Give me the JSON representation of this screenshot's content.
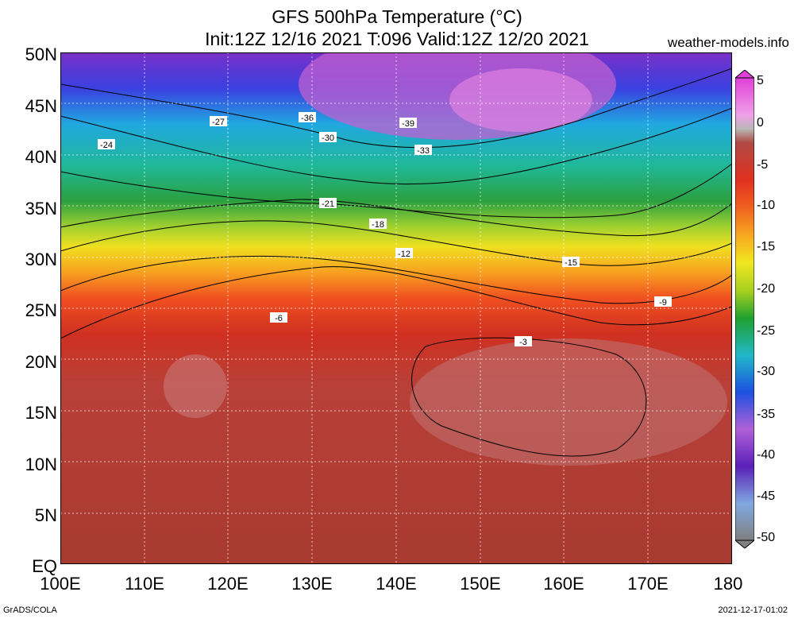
{
  "header": {
    "title": "GFS 500hPa Temperature (°C)",
    "subtitle": "Init:12Z 12/16 2021 T:096 Valid:12Z 12/20 2021",
    "site": "weather-models.info"
  },
  "axes": {
    "lat_labels": [
      "50N",
      "45N",
      "40N",
      "35N",
      "30N",
      "25N",
      "20N",
      "15N",
      "10N",
      "5N",
      "EQ"
    ],
    "lon_labels": [
      "100E",
      "110E",
      "120E",
      "130E",
      "140E",
      "150E",
      "160E",
      "170E",
      "180"
    ]
  },
  "colorbar": {
    "labels": [
      "5",
      "0",
      "-5",
      "-10",
      "-15",
      "-20",
      "-25",
      "-30",
      "-35",
      "-40",
      "-45",
      "-50"
    ],
    "colors": [
      "#e040d8",
      "#b8b8b8",
      "#b04a45",
      "#e03020",
      "#f06020",
      "#f8a820",
      "#f0e820",
      "#a8d020",
      "#20a030",
      "#20b8c8",
      "#1e50e0",
      "#5a20b8"
    ]
  },
  "contour_labels": [
    "-36",
    "-39",
    "-33",
    "-30",
    "-27",
    "-24",
    "-21",
    "-18",
    "-15",
    "-12",
    "-9",
    "-6",
    "-3"
  ],
  "footer": {
    "left": "GrADS/COLA",
    "right": "2021-12-17-01:02"
  }
}
